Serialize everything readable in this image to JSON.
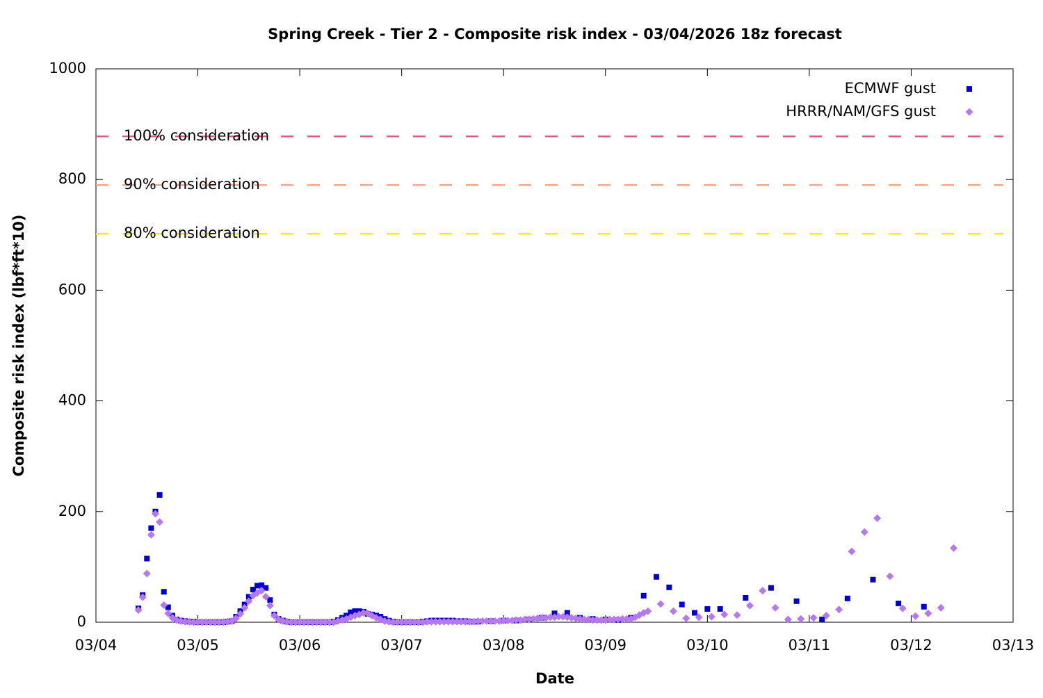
{
  "chart_data": {
    "type": "scatter",
    "title": "Spring Creek - Tier 2 - Composite risk index - 03/04/2026 18z forecast",
    "xlabel": "Date",
    "ylabel": "Composite risk index (lbf*ft*10)",
    "xlim": [
      0,
      216
    ],
    "xticks": [
      {
        "value": 0,
        "label": "03/04"
      },
      {
        "value": 24,
        "label": "03/05"
      },
      {
        "value": 48,
        "label": "03/06"
      },
      {
        "value": 72,
        "label": "03/07"
      },
      {
        "value": 96,
        "label": "03/08"
      },
      {
        "value": 120,
        "label": "03/09"
      },
      {
        "value": 144,
        "label": "03/10"
      },
      {
        "value": 168,
        "label": "03/11"
      },
      {
        "value": 192,
        "label": "03/12"
      },
      {
        "value": 216,
        "label": "03/13"
      }
    ],
    "ylim": [
      0,
      1000
    ],
    "yticks": [
      0,
      200,
      400,
      600,
      800,
      1000
    ],
    "legend": "upper right",
    "threshold_lines": [
      {
        "label": "100% consideration",
        "value": 878,
        "color": "#dc5a78"
      },
      {
        "label": "90% consideration",
        "value": 790,
        "color": "#f4a77c"
      },
      {
        "label": "80% consideration",
        "value": 702,
        "color": "#f2ee00"
      }
    ],
    "series": [
      {
        "name": "ECMWF gust",
        "color": "#0000cc",
        "marker": "square",
        "x": [
          10,
          11,
          12,
          13,
          14,
          15,
          16,
          17,
          18,
          19,
          20,
          21,
          22,
          23,
          24,
          25,
          26,
          27,
          28,
          29,
          30,
          31,
          32,
          33,
          34,
          35,
          36,
          37,
          38,
          39,
          40,
          41,
          42,
          43,
          44,
          45,
          46,
          47,
          48,
          49,
          50,
          51,
          52,
          53,
          54,
          55,
          56,
          57,
          58,
          59,
          60,
          61,
          62,
          63,
          64,
          65,
          66,
          67,
          68,
          69,
          70,
          71,
          72,
          73,
          74,
          75,
          76,
          77,
          78,
          79,
          80,
          81,
          82,
          83,
          84,
          85,
          86,
          87,
          88,
          89,
          90,
          93,
          96,
          99,
          102,
          105,
          108,
          111,
          114,
          117,
          120,
          123,
          126,
          129,
          132,
          135,
          138,
          141,
          144,
          147,
          153,
          159,
          165,
          171,
          177,
          183,
          189,
          195
        ],
        "values": [
          25,
          49,
          115,
          170,
          200,
          230,
          55,
          27,
          12,
          5,
          3,
          2,
          1,
          1,
          0,
          0,
          0,
          0,
          0,
          0,
          0,
          1,
          2,
          10,
          20,
          32,
          46,
          59,
          66,
          67,
          62,
          40,
          14,
          6,
          3,
          1,
          0,
          0,
          0,
          0,
          0,
          0,
          0,
          0,
          0,
          0,
          1,
          4,
          8,
          12,
          18,
          20,
          20,
          19,
          15,
          14,
          12,
          10,
          6,
          3,
          1,
          0,
          0,
          0,
          0,
          0,
          0,
          1,
          2,
          3,
          3,
          3,
          3,
          3,
          3,
          2,
          2,
          2,
          1,
          1,
          1,
          2,
          3,
          3,
          5,
          8,
          16,
          17,
          8,
          6,
          5,
          4,
          8,
          48,
          82,
          63,
          32,
          17,
          24,
          24,
          44,
          62,
          38,
          5,
          43,
          77,
          34,
          28
        ]
      },
      {
        "name": "HRRR/NAM/GFS gust",
        "color": "#b678ee",
        "marker": "diamond",
        "x": [
          10,
          11,
          12,
          13,
          14,
          15,
          16,
          17,
          18,
          19,
          20,
          21,
          22,
          23,
          24,
          25,
          26,
          27,
          28,
          29,
          30,
          31,
          32,
          33,
          34,
          35,
          36,
          37,
          38,
          39,
          40,
          41,
          42,
          43,
          44,
          45,
          46,
          47,
          48,
          49,
          50,
          51,
          52,
          53,
          54,
          55,
          56,
          57,
          58,
          59,
          60,
          61,
          62,
          63,
          64,
          65,
          66,
          67,
          68,
          69,
          70,
          71,
          72,
          73,
          74,
          75,
          76,
          77,
          78,
          79,
          80,
          81,
          82,
          83,
          84,
          85,
          86,
          87,
          88,
          89,
          90,
          91,
          92,
          93,
          94,
          95,
          96,
          97,
          98,
          99,
          100,
          101,
          102,
          103,
          104,
          105,
          106,
          107,
          108,
          109,
          110,
          111,
          112,
          113,
          114,
          115,
          116,
          117,
          118,
          119,
          120,
          121,
          122,
          123,
          124,
          125,
          126,
          127,
          128,
          129,
          130,
          133,
          136,
          139,
          142,
          145,
          148,
          151,
          154,
          157,
          160,
          163,
          166,
          169,
          172,
          175,
          178,
          181,
          184,
          187,
          190,
          193,
          196,
          199,
          202
        ],
        "values": [
          22,
          45,
          88,
          158,
          196,
          181,
          31,
          16,
          8,
          4,
          2,
          1,
          1,
          0,
          0,
          0,
          0,
          0,
          0,
          0,
          0,
          1,
          2,
          7,
          15,
          26,
          38,
          48,
          53,
          57,
          46,
          30,
          12,
          5,
          2,
          1,
          0,
          0,
          0,
          0,
          0,
          0,
          0,
          0,
          0,
          0,
          0,
          2,
          4,
          6,
          9,
          12,
          14,
          17,
          16,
          12,
          8,
          5,
          2,
          1,
          0,
          0,
          0,
          0,
          0,
          0,
          0,
          0,
          1,
          1,
          1,
          1,
          1,
          1,
          1,
          1,
          1,
          1,
          1,
          1,
          2,
          2,
          2,
          2,
          2,
          2,
          3,
          3,
          3,
          4,
          4,
          5,
          5,
          6,
          7,
          8,
          8,
          9,
          9,
          10,
          10,
          9,
          8,
          7,
          6,
          5,
          5,
          4,
          4,
          4,
          4,
          5,
          5,
          5,
          6,
          6,
          6,
          9,
          13,
          17,
          20,
          33,
          20,
          7,
          9,
          10,
          14,
          13,
          30,
          57,
          26,
          5,
          6,
          8,
          12,
          23,
          128,
          163,
          188,
          83,
          25,
          11,
          16,
          26,
          134
        ]
      }
    ]
  }
}
